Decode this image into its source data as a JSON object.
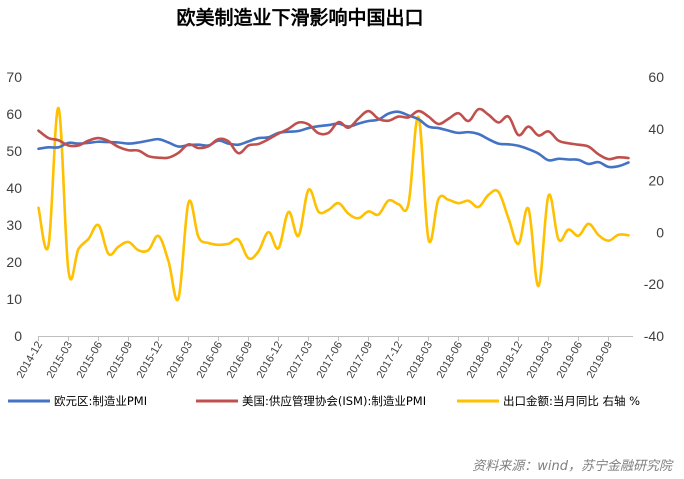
{
  "chart_data": {
    "type": "line",
    "title": "欧美制造业下滑影响中国出口",
    "source": "资料来源：wind，苏宁金融研究院",
    "left_axis": {
      "ylim": [
        0,
        70
      ],
      "ticks": [
        0,
        10,
        20,
        30,
        40,
        50,
        60,
        70
      ]
    },
    "right_axis": {
      "ylim": [
        -40,
        60
      ],
      "ticks": [
        -40,
        -20,
        0,
        20,
        40,
        60
      ]
    },
    "grid": false,
    "legend_position": "bottom",
    "x_labels": [
      "2014-12",
      "2015-03",
      "2015-06",
      "2015-09",
      "2015-12",
      "2016-03",
      "2016-06",
      "2016-09",
      "2016-12",
      "2017-03",
      "2017-06",
      "2017-09",
      "2017-12",
      "2018-03",
      "2018-06",
      "2018-09",
      "2018-12",
      "2019-03",
      "2019-06",
      "2019-09"
    ],
    "x": [
      "2014-12",
      "2015-01",
      "2015-02",
      "2015-03",
      "2015-04",
      "2015-05",
      "2015-06",
      "2015-07",
      "2015-08",
      "2015-09",
      "2015-10",
      "2015-11",
      "2015-12",
      "2016-01",
      "2016-02",
      "2016-03",
      "2016-04",
      "2016-05",
      "2016-06",
      "2016-07",
      "2016-08",
      "2016-09",
      "2016-10",
      "2016-11",
      "2016-12",
      "2017-01",
      "2017-02",
      "2017-03",
      "2017-04",
      "2017-05",
      "2017-06",
      "2017-07",
      "2017-08",
      "2017-09",
      "2017-10",
      "2017-11",
      "2017-12",
      "2018-01",
      "2018-02",
      "2018-03",
      "2018-04",
      "2018-05",
      "2018-06",
      "2018-07",
      "2018-08",
      "2018-09",
      "2018-10",
      "2018-11",
      "2018-12",
      "2019-01",
      "2019-02",
      "2019-03",
      "2019-04",
      "2019-05",
      "2019-06",
      "2019-07",
      "2019-08",
      "2019-09",
      "2019-10",
      "2019-11"
    ],
    "series": [
      {
        "name": "欧元区:制造业PMI",
        "axis": "left",
        "color": "#4472c4",
        "values": [
          50.6,
          51.0,
          51.0,
          52.2,
          52.0,
          52.2,
          52.5,
          52.4,
          52.3,
          52.0,
          52.3,
          52.8,
          53.2,
          52.3,
          51.2,
          51.6,
          51.7,
          51.5,
          52.8,
          52.0,
          51.7,
          52.6,
          53.5,
          53.7,
          54.9,
          55.2,
          55.4,
          56.2,
          56.7,
          57.0,
          57.4,
          56.6,
          57.4,
          58.1,
          58.5,
          60.1,
          60.6,
          59.6,
          58.6,
          56.6,
          56.2,
          55.5,
          54.9,
          55.1,
          54.6,
          53.2,
          52.0,
          51.8,
          51.4,
          50.5,
          49.3,
          47.5,
          47.9,
          47.7,
          47.6,
          46.5,
          47.0,
          45.7,
          45.9,
          46.9
        ]
      },
      {
        "name": "美国:供应管理协会(ISM):制造业PMI",
        "axis": "left",
        "color": "#c0504d",
        "values": [
          55.5,
          53.5,
          52.9,
          51.5,
          51.5,
          52.8,
          53.5,
          52.7,
          51.1,
          50.2,
          50.1,
          48.6,
          48.2,
          48.2,
          49.5,
          51.8,
          50.8,
          51.3,
          53.2,
          52.6,
          49.4,
          51.5,
          51.9,
          53.2,
          54.7,
          56.0,
          57.7,
          57.2,
          54.8,
          54.9,
          57.8,
          56.3,
          58.8,
          60.8,
          58.7,
          58.2,
          59.3,
          59.1,
          60.8,
          59.3,
          57.3,
          58.7,
          60.2,
          58.1,
          61.3,
          59.8,
          57.7,
          59.3,
          54.3,
          56.6,
          54.2,
          55.3,
          52.8,
          52.1,
          51.7,
          51.2,
          49.1,
          47.8,
          48.3,
          48.1
        ]
      },
      {
        "name": "出口金额:当月同比 右轴 %",
        "axis": "right",
        "color": "#ffc000",
        "values": [
          9.5,
          -5.0,
          48.0,
          -15.0,
          -6.4,
          -2.5,
          2.8,
          -8.3,
          -5.5,
          -3.7,
          -6.9,
          -6.8,
          -1.4,
          -11.2,
          -25.4,
          11.5,
          -1.8,
          -4.1,
          -4.8,
          -4.4,
          -2.8,
          -10.0,
          -7.3,
          0.1,
          -6.1,
          7.9,
          -1.3,
          16.4,
          8.0,
          8.7,
          11.3,
          7.2,
          5.5,
          8.1,
          6.9,
          12.3,
          10.9,
          11.1,
          44.5,
          -2.7,
          12.9,
          12.6,
          11.3,
          12.2,
          9.8,
          14.5,
          15.6,
          5.4,
          -4.4,
          9.1,
          -20.7,
          14.2,
          -2.7,
          1.1,
          -1.3,
          3.3,
          -1.0,
          -3.2,
          -0.9,
          -1.1
        ]
      }
    ]
  }
}
